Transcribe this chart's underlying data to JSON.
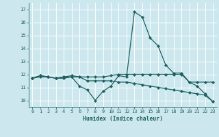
{
  "xlabel": "Humidex (Indice chaleur)",
  "background_color": "#cce8ee",
  "grid_color": "#ffffff",
  "line_color": "#1a6060",
  "xlim": [
    -0.5,
    23.5
  ],
  "ylim": [
    9.5,
    17.5
  ],
  "yticks": [
    10,
    11,
    12,
    13,
    14,
    15,
    16,
    17
  ],
  "xticks": [
    0,
    1,
    2,
    3,
    4,
    5,
    6,
    7,
    8,
    9,
    10,
    11,
    12,
    13,
    14,
    15,
    16,
    17,
    18,
    19,
    20,
    21,
    22,
    23
  ],
  "series": [
    [
      11.7,
      11.9,
      11.8,
      11.7,
      11.8,
      11.8,
      11.1,
      10.8,
      10.0,
      10.7,
      11.1,
      11.9,
      11.8,
      16.8,
      16.4,
      14.8,
      14.2,
      12.7,
      12.1,
      12.1,
      11.4,
      11.1,
      10.5,
      9.9
    ],
    [
      11.7,
      11.9,
      11.8,
      11.7,
      11.8,
      11.9,
      11.8,
      11.8,
      11.8,
      11.8,
      11.9,
      12.0,
      12.0,
      12.0,
      12.0,
      12.0,
      12.0,
      12.0,
      12.0,
      12.0,
      11.4,
      11.4,
      11.4,
      11.4
    ],
    [
      11.7,
      11.8,
      11.8,
      11.7,
      11.7,
      11.8,
      11.8,
      11.5,
      11.5,
      11.5,
      11.5,
      11.4,
      11.4,
      11.3,
      11.2,
      11.1,
      11.0,
      10.9,
      10.8,
      10.7,
      10.6,
      10.5,
      10.4,
      9.9
    ]
  ]
}
